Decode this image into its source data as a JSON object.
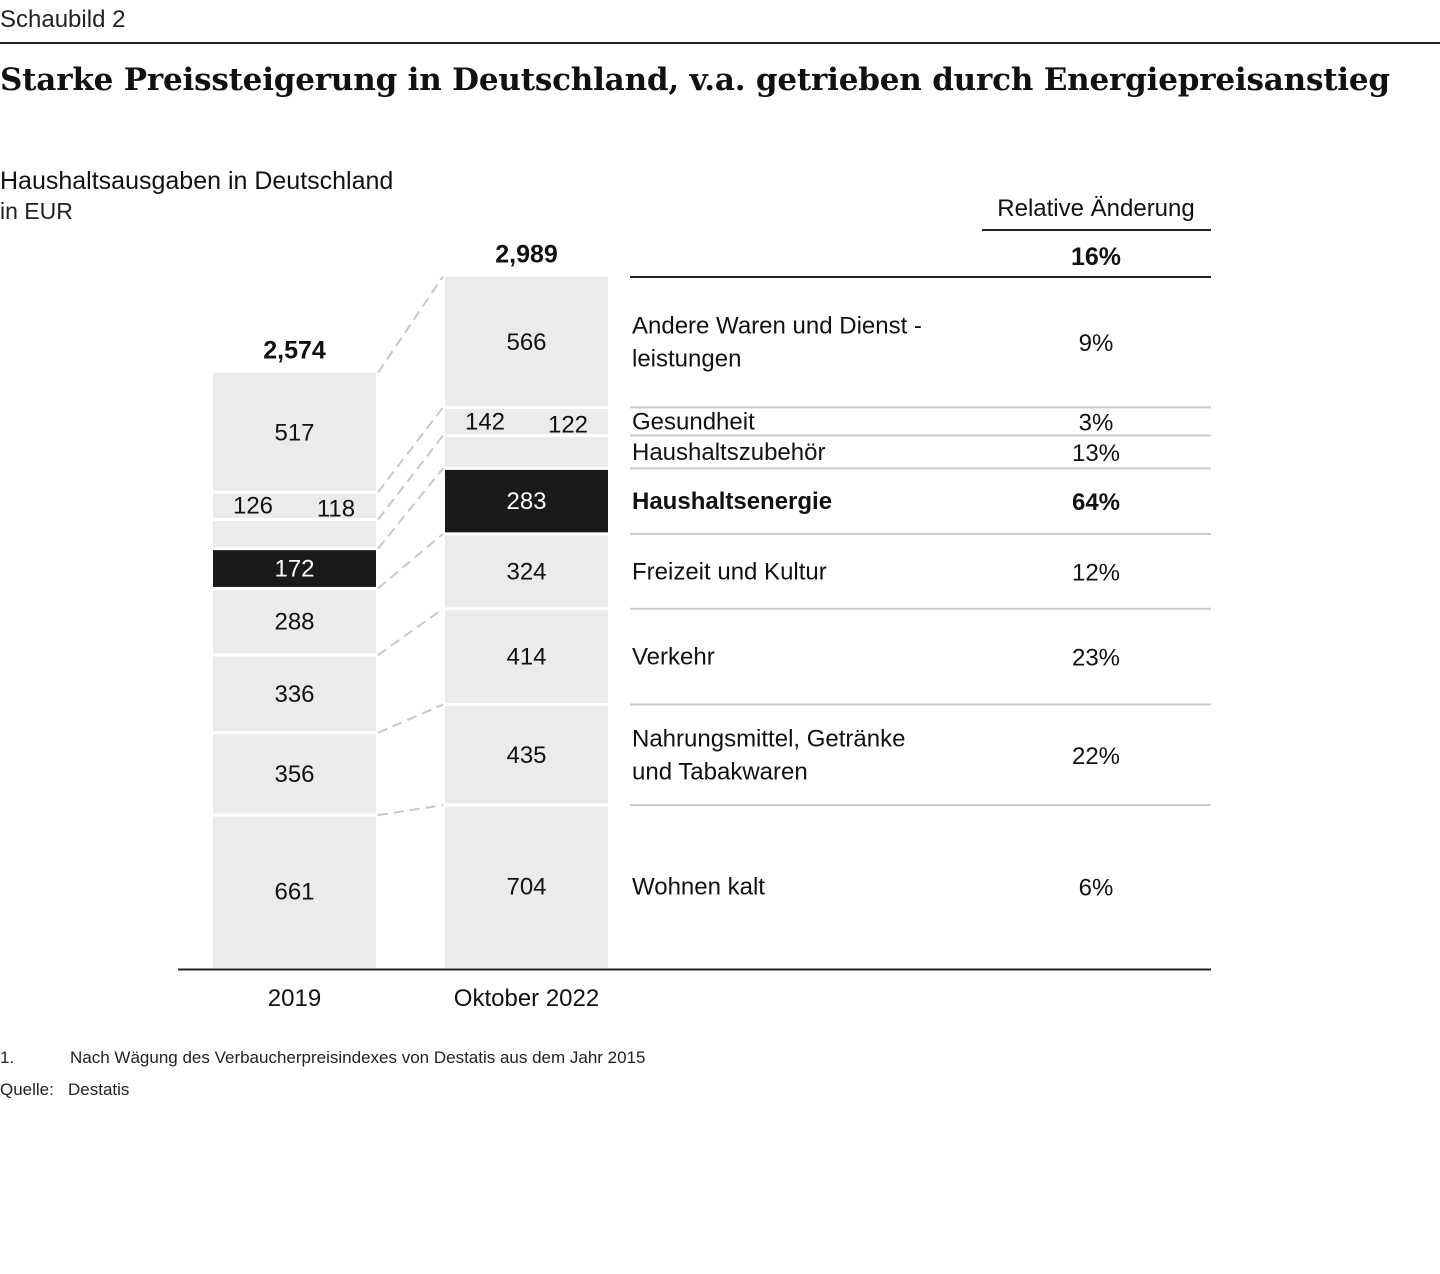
{
  "header": {
    "kicker": "Schaubild 2",
    "title": "Starke Preissteigerung in Deutschland, v.a. getrieben durch Energiepreisanstieg",
    "subtitle": "Haushaltsausgaben in Deutschland",
    "unit": "in EUR"
  },
  "chart_data": {
    "type": "bar",
    "stacked": true,
    "title": "Haushaltsausgaben in Deutschland",
    "ylabel": "in EUR",
    "categories": [
      "2019",
      "Oktober 2022"
    ],
    "totals": [
      "2,574",
      "2,989"
    ],
    "series": [
      {
        "name": "Wohnen kalt",
        "values": [
          661,
          704
        ],
        "change": "6%"
      },
      {
        "name": "Nahrungsmittel, Getränke und Tabakwaren",
        "label_lines": [
          "Nahrungsmittel, Getränke",
          "und Tabakwaren"
        ],
        "values": [
          356,
          435
        ],
        "change": "22%"
      },
      {
        "name": "Verkehr",
        "values": [
          336,
          414
        ],
        "change": "23%"
      },
      {
        "name": "Freizeit und Kultur",
        "values": [
          288,
          324
        ],
        "change": "12%"
      },
      {
        "name": "Haushaltsenergie",
        "values": [
          172,
          283
        ],
        "change": "64%",
        "highlight": true
      },
      {
        "name": "Haushaltszubehör",
        "values": [
          126,
          142
        ],
        "change": "13%"
      },
      {
        "name": "Gesundheit",
        "values": [
          118,
          122
        ],
        "change": "3%"
      },
      {
        "name": "Andere Waren und Dienstleistungen",
        "label_lines": [
          "Andere Waren und Dienst -",
          "leistungen"
        ],
        "values": [
          517,
          566
        ],
        "change": "9%"
      }
    ],
    "change_header": "Relative Änderung",
    "total_change": "16%",
    "colors": {
      "bar": "#ebebeb",
      "highlight": "#1a1a1a",
      "text": "#111111",
      "rule": "#222222",
      "divider": "#c8c8c8"
    }
  },
  "footnotes": {
    "note_number": "1.",
    "note_text": "Nach Wägung des Verbaucherpreisindexes von Destatis aus dem Jahr 2015",
    "source_label": "Quelle:",
    "source_text": "Destatis"
  }
}
